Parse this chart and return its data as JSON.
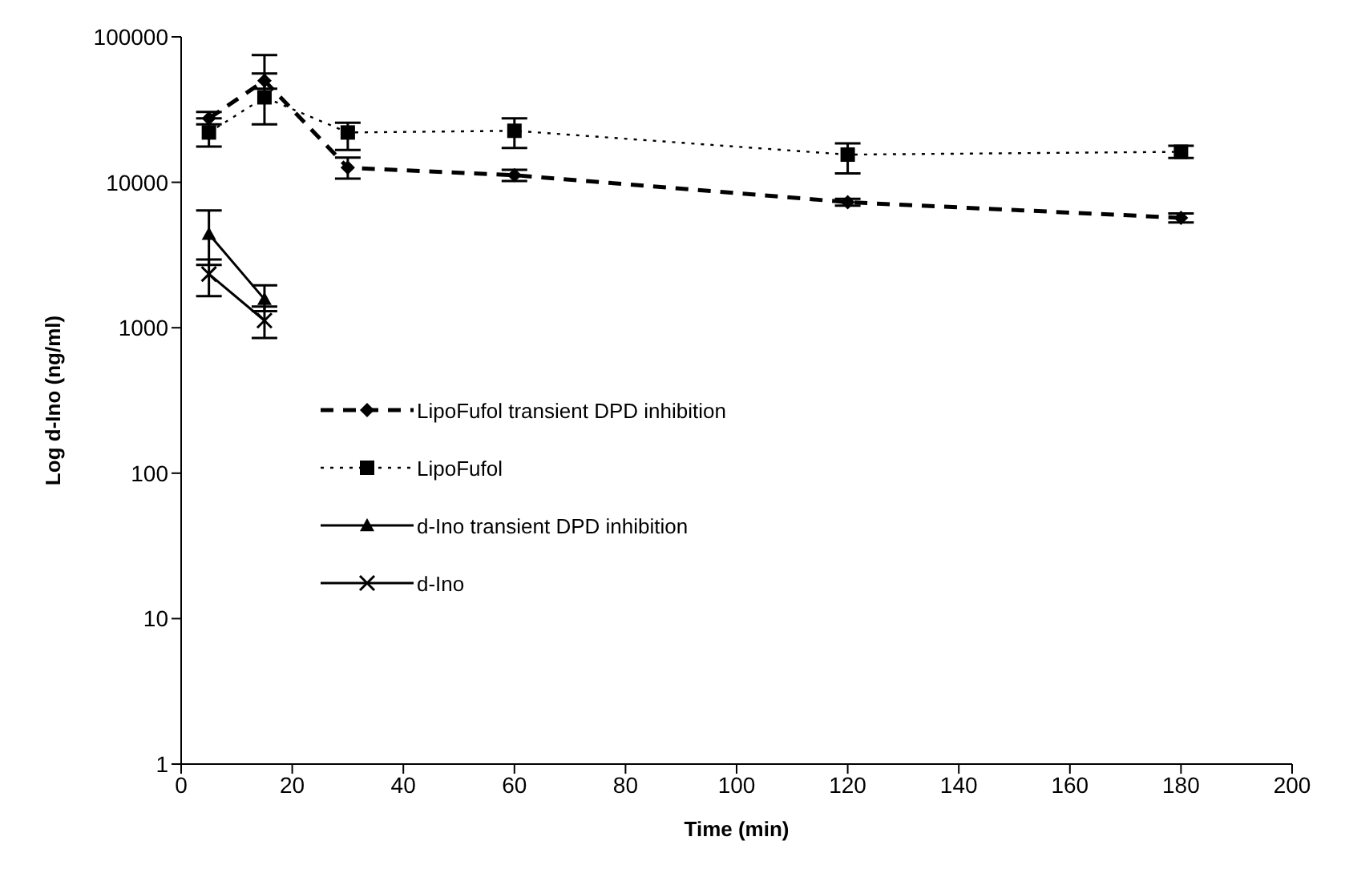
{
  "chart_data": {
    "type": "line",
    "xlabel": "Time (min)",
    "ylabel": "Log d-Ino (ng/ml)",
    "log": "y",
    "xlim": [
      0,
      200
    ],
    "xticks": [
      0,
      20,
      40,
      60,
      80,
      100,
      120,
      140,
      160,
      180,
      200
    ],
    "ylim": [
      1,
      100000
    ],
    "yticks": [
      1,
      10,
      100,
      1000,
      10000,
      100000
    ],
    "grid": false,
    "legend": "left",
    "series": [
      {
        "name": "LipoFufol transient DPD inhibition",
        "color": "#000000",
        "marker": "diamond",
        "line_style": "dashed",
        "x": [
          5,
          15,
          30,
          60,
          120,
          180
        ],
        "values": [
          27500,
          50000,
          12600,
          11200,
          7300,
          5700
        ],
        "errors": [
          [
            25000,
            30500
          ],
          [
            44000,
            56000
          ],
          [
            10600,
            14800
          ],
          [
            10200,
            12200
          ],
          [
            6900,
            7700
          ],
          [
            5300,
            6100
          ]
        ]
      },
      {
        "name": "LipoFufol",
        "color": "#000000",
        "marker": "square",
        "line_style": "dotted",
        "x": [
          5,
          15,
          30,
          60,
          120,
          180
        ],
        "values": [
          22000,
          38400,
          22000,
          22600,
          15500,
          16200
        ],
        "errors": [
          [
            17600,
            27500
          ],
          [
            25000,
            75000
          ],
          [
            16700,
            25700
          ],
          [
            17200,
            27500
          ],
          [
            11500,
            18500
          ],
          [
            14700,
            17800
          ]
        ]
      },
      {
        "name": "d-Ino transient DPD inhibition",
        "color": "#000000",
        "marker": "triangle",
        "line_style": "solid",
        "x": [
          5,
          15
        ],
        "values": [
          4400,
          1570
        ],
        "errors": [
          [
            2700,
            6400
          ],
          [
            1300,
            1960
          ]
        ]
      },
      {
        "name": "d-Ino",
        "color": "#000000",
        "marker": "cross",
        "line_style": "solid",
        "x": [
          5,
          15
        ],
        "values": [
          2340,
          1120
        ],
        "errors": [
          [
            1650,
            2950
          ],
          [
            850,
            1400
          ]
        ]
      }
    ]
  }
}
